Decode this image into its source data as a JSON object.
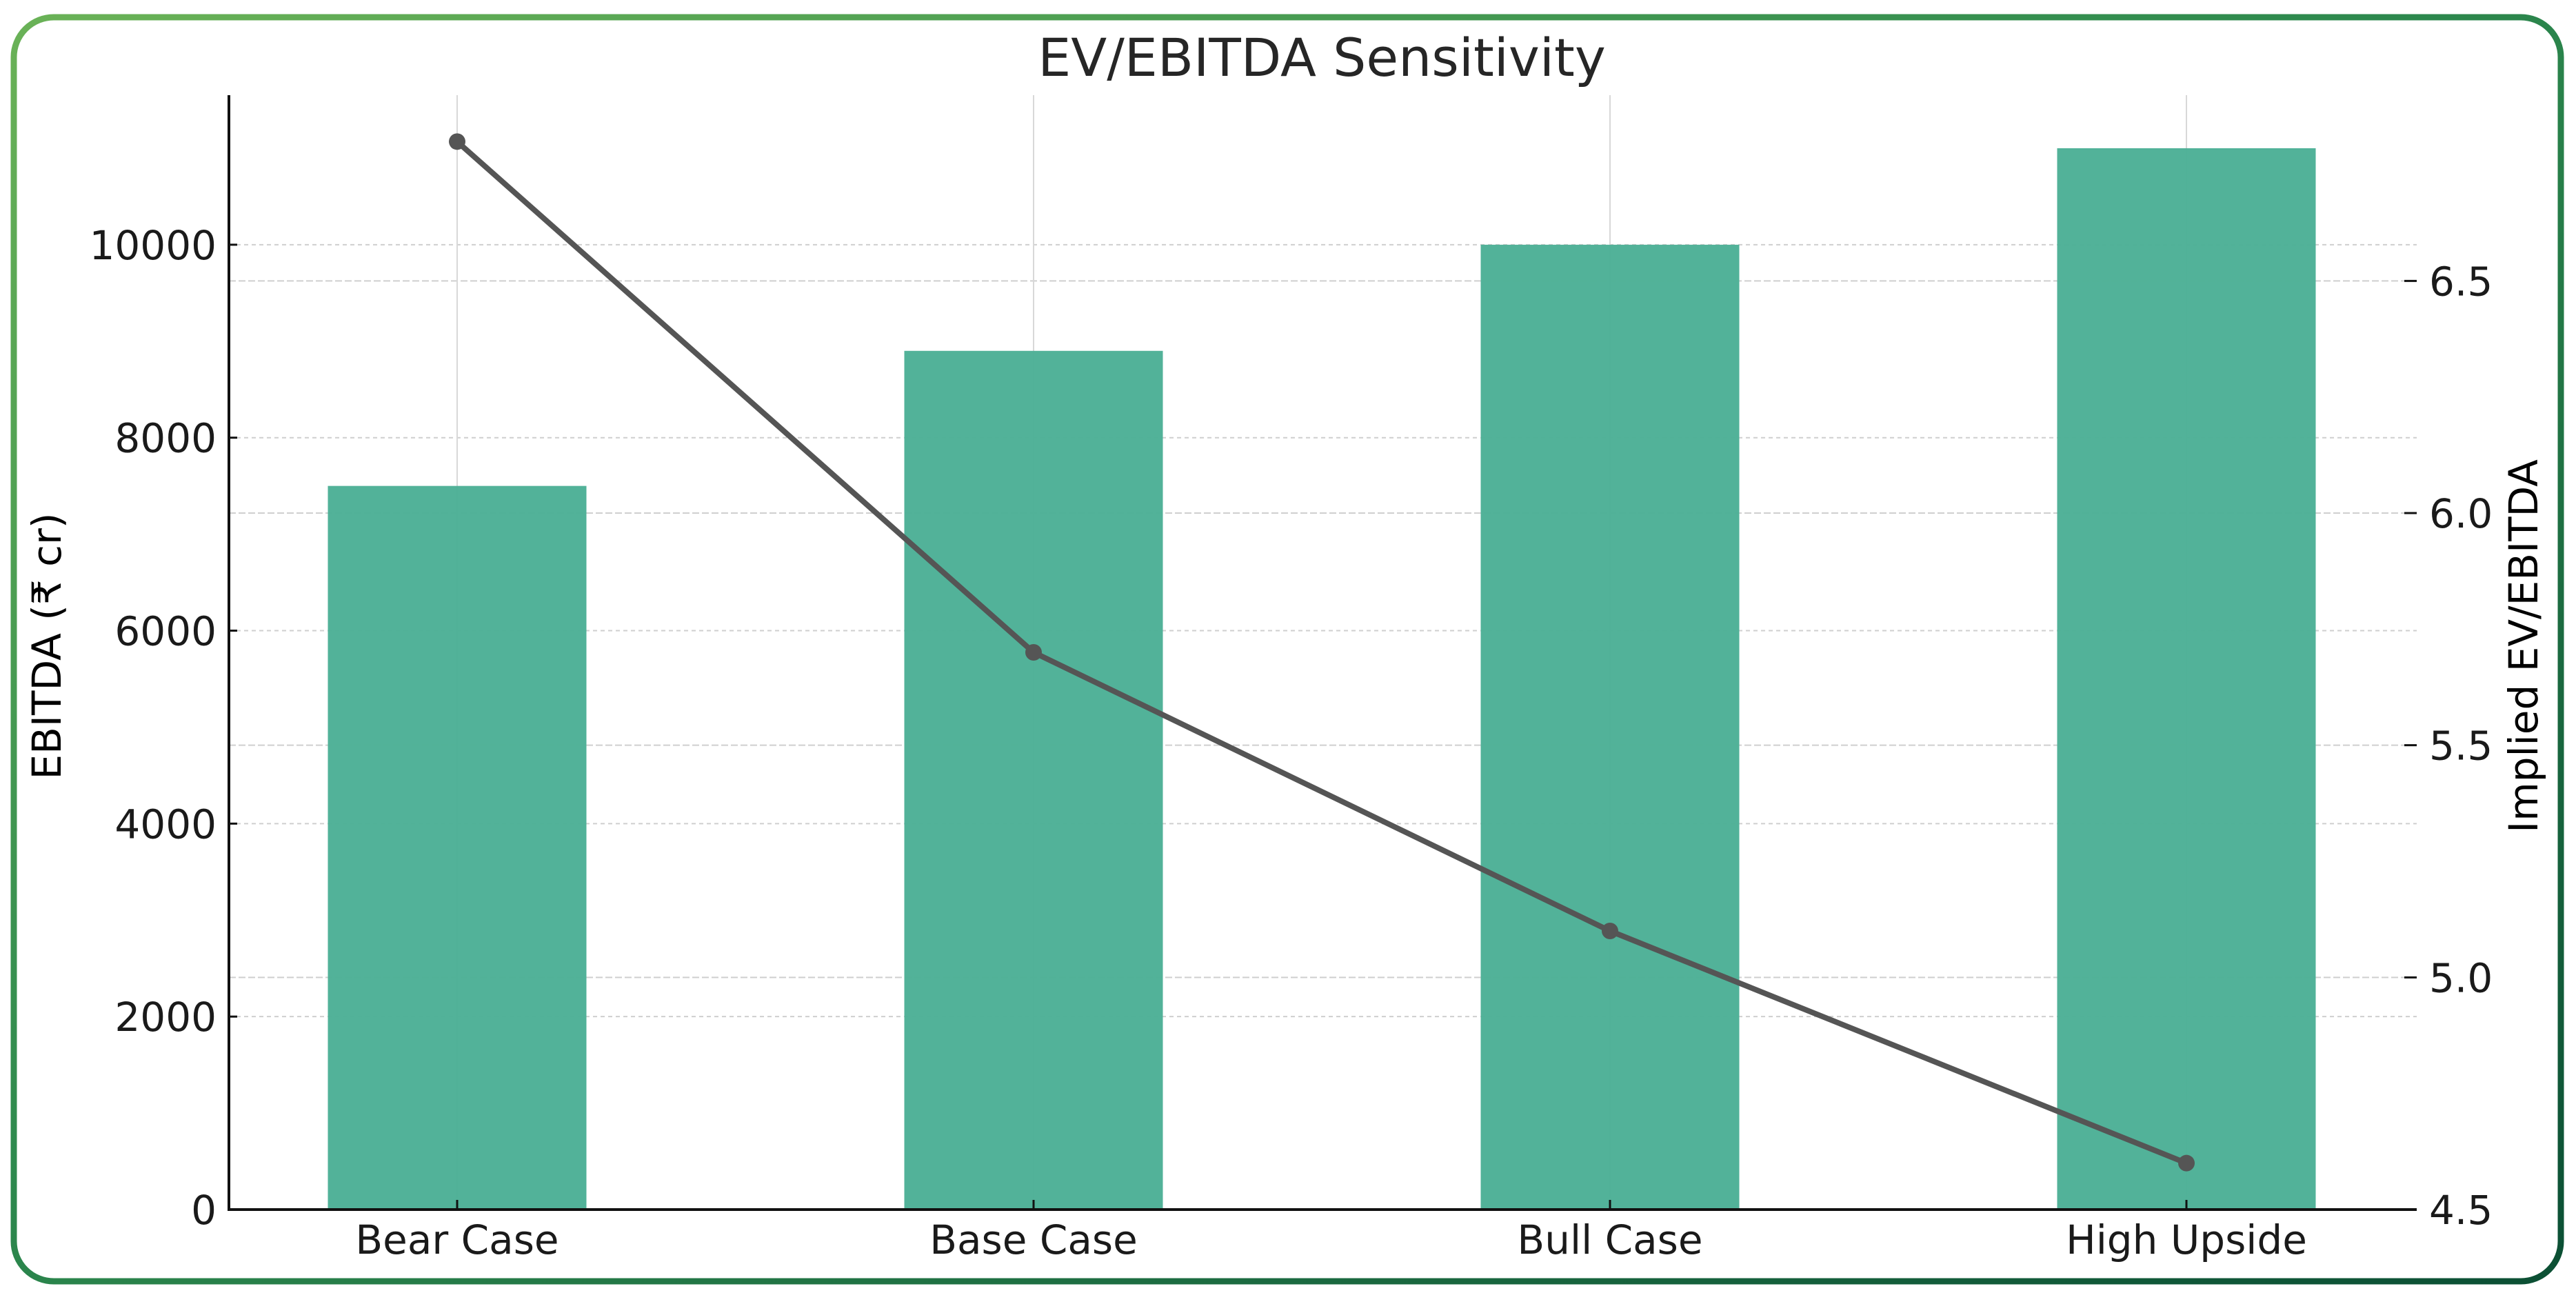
{
  "chart_data": {
    "type": "bar+line",
    "title": "EV/EBITDA Sensitivity",
    "categories": [
      "Bear Case",
      "Base Case",
      "Bull Case",
      "High Upside"
    ],
    "series": [
      {
        "name": "EBITDA (₹ cr)",
        "type": "bar",
        "axis": "left",
        "values": [
          7500,
          8900,
          10000,
          11000
        ],
        "color": "#4caf96"
      },
      {
        "name": "Implied EV/EBITDA",
        "type": "line",
        "axis": "right",
        "values": [
          6.8,
          5.7,
          5.1,
          4.6
        ],
        "color": "#555555",
        "marker": "circle"
      }
    ],
    "xlabel": "",
    "ylabel_left": "EBITDA (₹ cr)",
    "ylabel_right": "Implied EV/EBITDA",
    "ylim_left": [
      0,
      11550
    ],
    "ylim_right": [
      4.5,
      6.9
    ],
    "yticks_left": [
      0,
      2000,
      4000,
      6000,
      8000,
      10000
    ],
    "yticks_right": [
      4.5,
      5.0,
      5.5,
      6.0,
      6.5
    ],
    "ytick_labels_left": [
      "0",
      "2000",
      "4000",
      "6000",
      "8000",
      "10000"
    ],
    "ytick_labels_right": [
      "4.5",
      "5.0",
      "5.5",
      "6.0",
      "6.5"
    ],
    "grid": true,
    "legend": "none"
  },
  "style": {
    "border_gradient_start": "#6ab257",
    "border_gradient_mid": "#2e8a4e",
    "border_gradient_end": "#0b4f34",
    "text_color": "#1a1a1a",
    "title_color": "#262626",
    "grid_color": "#cfcfcf"
  }
}
